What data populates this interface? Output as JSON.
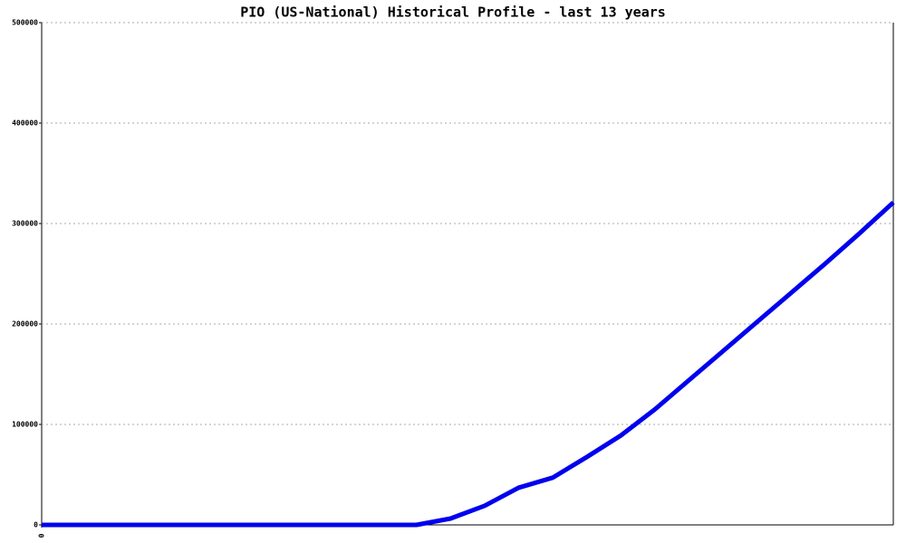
{
  "chart_data": {
    "type": "line",
    "title": "PIO (US-National) Historical Profile - last 13 years",
    "x": [
      0,
      1,
      2,
      3,
      4,
      5,
      6,
      7,
      8,
      9,
      10,
      11,
      12,
      13,
      14,
      15,
      16,
      17,
      18,
      19,
      20,
      21,
      22,
      23,
      24,
      25
    ],
    "values": [
      0,
      0,
      0,
      0,
      0,
      0,
      0,
      0,
      0,
      0,
      0,
      0,
      6300,
      19000,
      37000,
      47000,
      67500,
      89000,
      115000,
      144000,
      173000,
      202000,
      231000,
      260000,
      290000,
      321000
    ],
    "color": "#0000ee",
    "xlim": [
      0,
      25
    ],
    "xticks": [
      0
    ],
    "ylim": [
      0,
      500000
    ],
    "yticks": [
      0,
      100000,
      200000,
      300000,
      400000,
      500000
    ],
    "grid": true
  }
}
